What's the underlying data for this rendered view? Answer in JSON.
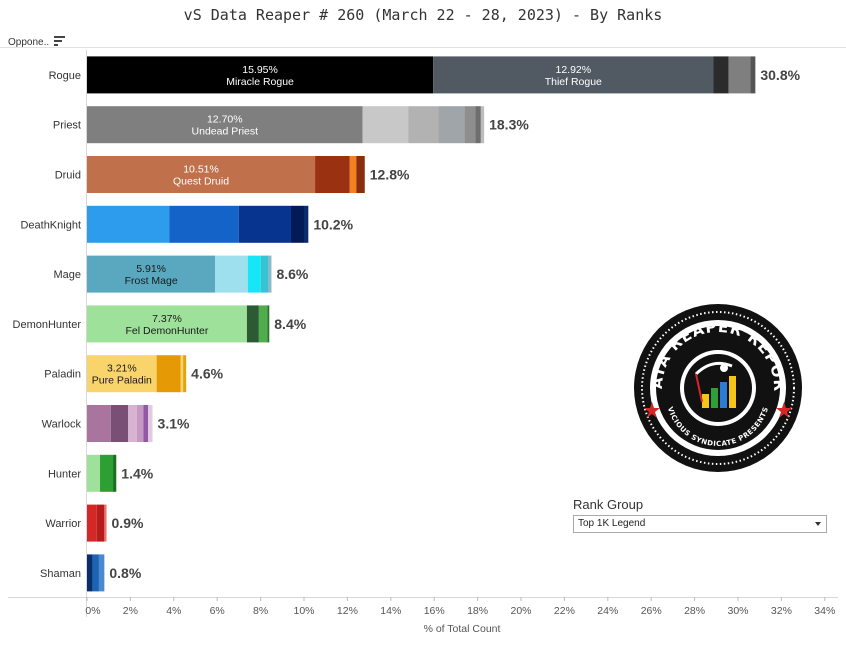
{
  "title": "vS Data Reaper #  260 (March 22 - 28, 2023) - By Ranks",
  "column_header": "Oppone..",
  "rank_group": {
    "title": "Rank Group",
    "selected": "Top 1K Legend"
  },
  "logo": {
    "text_top": "DATA REAPER REPORT",
    "text_bottom": "VICIOUS SYNDICATE PRESENTS"
  },
  "chart_data": {
    "type": "bar",
    "orientation": "horizontal",
    "stacked": true,
    "xlabel": "% of Total Count",
    "xlim": [
      0,
      34
    ],
    "x_ticks": [
      "0%",
      "2%",
      "4%",
      "6%",
      "8%",
      "10%",
      "12%",
      "14%",
      "16%",
      "18%",
      "20%",
      "22%",
      "24%",
      "26%",
      "28%",
      "30%",
      "32%",
      "34%"
    ],
    "categories": [
      {
        "name": "Rogue",
        "total_label": "30.8%",
        "segments": [
          {
            "value": 15.95,
            "color": "#000000",
            "label": "15.95%",
            "name": "Miracle Rogue",
            "text": "#ffffff"
          },
          {
            "value": 12.92,
            "color": "#515a63",
            "label": "12.92%",
            "name": "Thief Rogue",
            "text": "#ffffff"
          },
          {
            "value": 0.7,
            "color": "#2b2b2b"
          },
          {
            "value": 1.0,
            "color": "#7f7f7f"
          },
          {
            "value": 0.23,
            "color": "#555555"
          }
        ]
      },
      {
        "name": "Priest",
        "total_label": "18.3%",
        "segments": [
          {
            "value": 12.7,
            "color": "#7f7f7f",
            "label": "12.70%",
            "name": "Undead Priest",
            "text": "#ffffff"
          },
          {
            "value": 2.1,
            "color": "#c8c8c8"
          },
          {
            "value": 1.4,
            "color": "#b2b2b2"
          },
          {
            "value": 1.2,
            "color": "#a0a5a9"
          },
          {
            "value": 0.5,
            "color": "#8e8e8e"
          },
          {
            "value": 0.25,
            "color": "#6e6e6e"
          },
          {
            "value": 0.15,
            "color": "#bdbdbd"
          }
        ]
      },
      {
        "name": "Druid",
        "total_label": "12.8%",
        "segments": [
          {
            "value": 10.51,
            "color": "#c0704b",
            "label": "10.51%",
            "name": "Quest Druid",
            "text": "#ffffff"
          },
          {
            "value": 1.6,
            "color": "#9a3211"
          },
          {
            "value": 0.3,
            "color": "#f5801f"
          },
          {
            "value": 0.39,
            "color": "#8a2d0f"
          }
        ]
      },
      {
        "name": "DeathKnight",
        "total_label": "10.2%",
        "segments": [
          {
            "value": 3.8,
            "color": "#2e9cec"
          },
          {
            "value": 3.2,
            "color": "#1463c8"
          },
          {
            "value": 2.4,
            "color": "#06348f"
          },
          {
            "value": 0.6,
            "color": "#021a57"
          },
          {
            "value": 0.2,
            "color": "#0b2a6b"
          }
        ]
      },
      {
        "name": "Mage",
        "total_label": "8.6%",
        "segments": [
          {
            "value": 5.91,
            "color": "#5aa8c0",
            "label": "5.91%",
            "name": "Frost Mage",
            "text": "#1a1a1a"
          },
          {
            "value": 1.5,
            "color": "#9ee0ee"
          },
          {
            "value": 0.6,
            "color": "#16e6f6"
          },
          {
            "value": 0.35,
            "color": "#36c4d4"
          },
          {
            "value": 0.14,
            "color": "#8fb8c4"
          }
        ]
      },
      {
        "name": "DemonHunter",
        "total_label": "8.4%",
        "segments": [
          {
            "value": 7.37,
            "color": "#9ee19a",
            "label": "7.37%",
            "name": "Fel DemonHunter",
            "text": "#1a1a1a"
          },
          {
            "value": 0.55,
            "color": "#2c5a33"
          },
          {
            "value": 0.4,
            "color": "#4fae4b"
          },
          {
            "value": 0.08,
            "color": "#2e6e33"
          }
        ]
      },
      {
        "name": "Paladin",
        "total_label": "4.6%",
        "segments": [
          {
            "value": 3.21,
            "color": "#f9d46b",
            "label": "3.21%",
            "name": "Pure Paladin",
            "text": "#1a1a1a"
          },
          {
            "value": 1.1,
            "color": "#e59a05"
          },
          {
            "value": 0.12,
            "color": "#f9d46b"
          },
          {
            "value": 0.14,
            "color": "#e3a30b"
          }
        ]
      },
      {
        "name": "Warlock",
        "total_label": "3.1%",
        "segments": [
          {
            "value": 1.1,
            "color": "#a9749e"
          },
          {
            "value": 0.8,
            "color": "#7a4f75"
          },
          {
            "value": 0.4,
            "color": "#d9b3d3"
          },
          {
            "value": 0.3,
            "color": "#c59ac0"
          },
          {
            "value": 0.22,
            "color": "#9159a6"
          },
          {
            "value": 0.2,
            "color": "#e1cbe0"
          }
        ]
      },
      {
        "name": "Hunter",
        "total_label": "1.4%",
        "segments": [
          {
            "value": 0.6,
            "color": "#9ee19a"
          },
          {
            "value": 0.6,
            "color": "#2ea033"
          },
          {
            "value": 0.15,
            "color": "#1e6e23"
          }
        ]
      },
      {
        "name": "Warrior",
        "total_label": "0.9%",
        "segments": [
          {
            "value": 0.45,
            "color": "#d42828"
          },
          {
            "value": 0.35,
            "color": "#b71c1c"
          },
          {
            "value": 0.1,
            "color": "#e8746d"
          }
        ]
      },
      {
        "name": "Shaman",
        "total_label": "0.8%",
        "segments": [
          {
            "value": 0.25,
            "color": "#0a2d6b"
          },
          {
            "value": 0.3,
            "color": "#1c63b4"
          },
          {
            "value": 0.25,
            "color": "#4a89cc"
          }
        ]
      }
    ]
  }
}
